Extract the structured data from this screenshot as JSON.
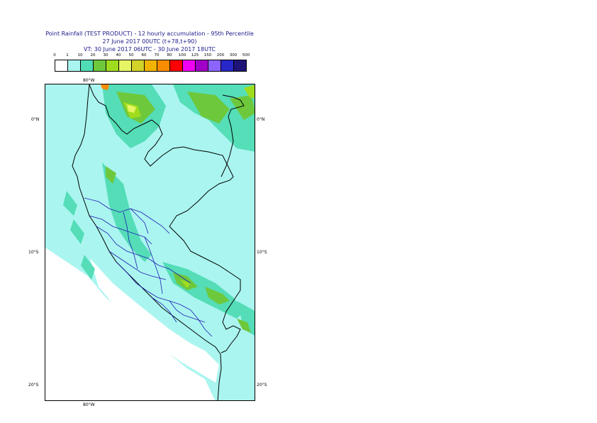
{
  "title": {
    "line1": "Point Rainfall (TEST PRODUCT) - 12 hourly accumulation - 95th Percentile",
    "line2": "27 June 2017 00UTC (t+78,t+90)",
    "line3": "VT: 30 June 2017 06UTC - 30 June 2017 18UTC"
  },
  "legend": {
    "labels": [
      "0",
      "1",
      "10",
      "20",
      "30",
      "40",
      "50",
      "60",
      "70",
      "80",
      "100",
      "125",
      "150",
      "200",
      "300",
      "500"
    ],
    "colors": [
      "#ffffff",
      "#aaf5f0",
      "#50dcb4",
      "#6ec83c",
      "#a0dc1e",
      "#e6f564",
      "#d2d228",
      "#f0b400",
      "#fa8c00",
      "#ff0000",
      "#f000f0",
      "#a000c8",
      "#8c64ff",
      "#2828c8",
      "#1e1478"
    ]
  },
  "axes": {
    "top_lon": "80°W",
    "bottom_lon": "80°W",
    "lat_0_left": "0°N",
    "lat_0_right": "0°N",
    "lat_10_left": "10°S",
    "lat_10_right": "10°S",
    "lat_20_left": "20°S",
    "lat_20_right": "20°S"
  }
}
